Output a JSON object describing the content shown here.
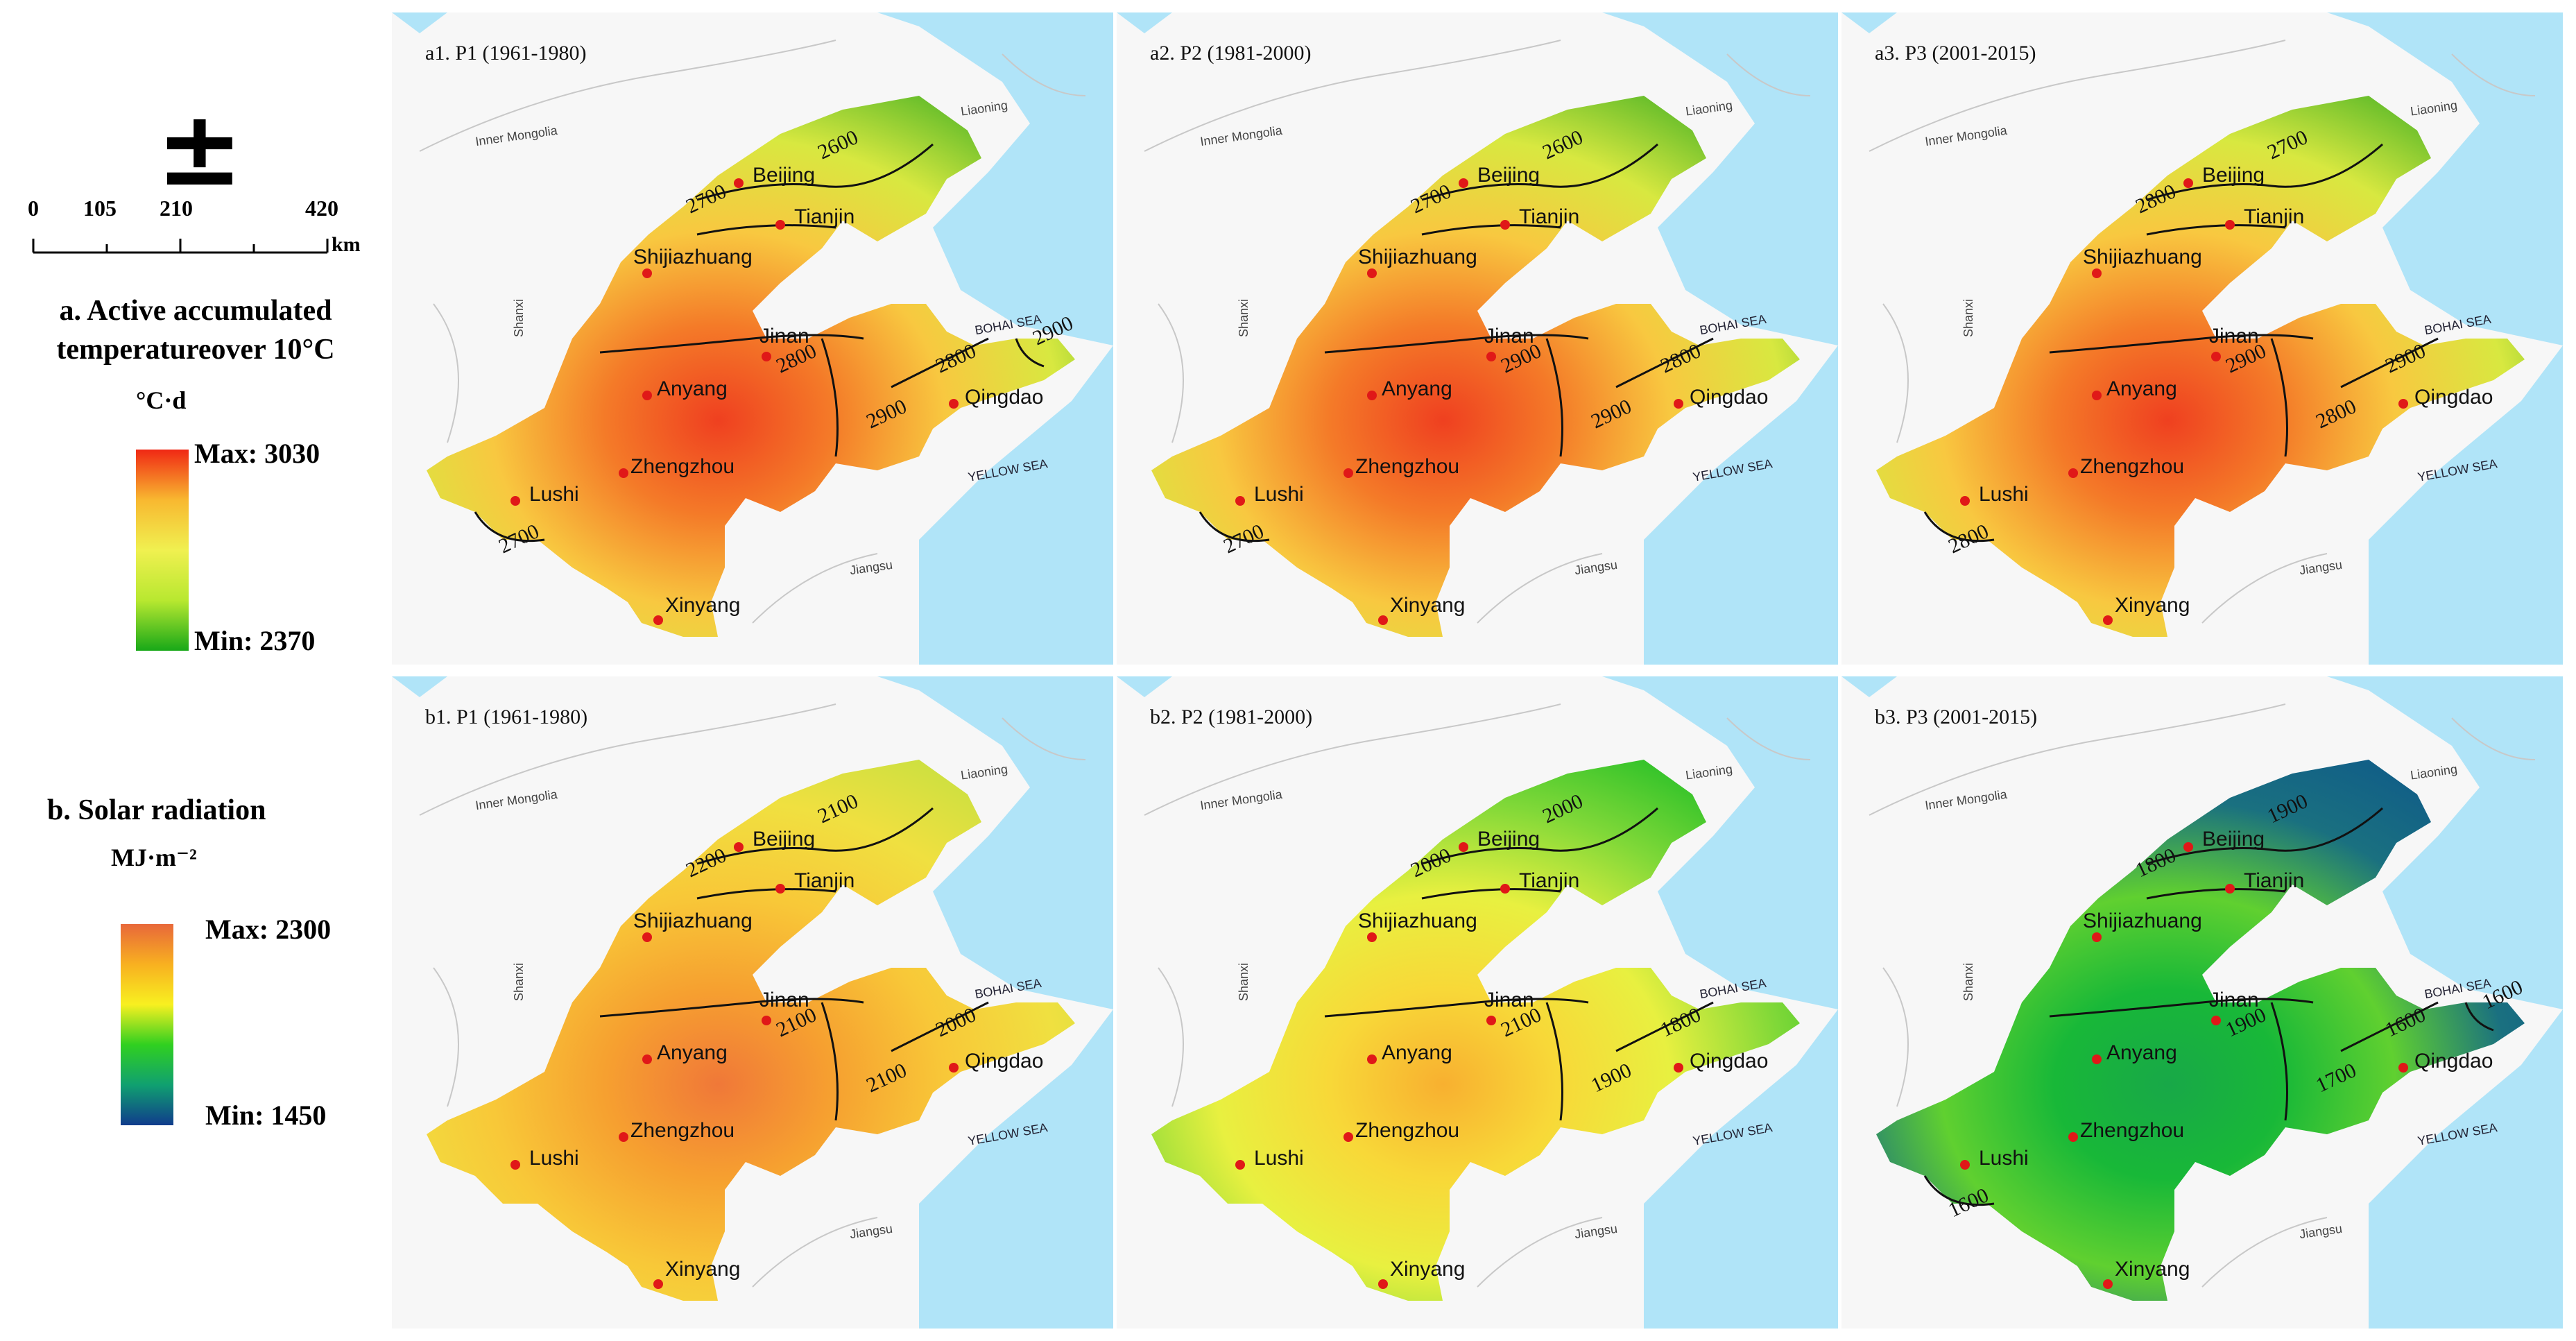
{
  "north_arrow": {
    "symbol": "±"
  },
  "scale_bar": {
    "ticks": [
      "0",
      "105",
      "210",
      "420"
    ],
    "unit": "km"
  },
  "legend_a": {
    "title_line1": "a. Active accumulated",
    "title_line2": "temperatureover 10°C",
    "unit": "°C·d",
    "max_label": "Max: 3030",
    "min_label": "Min: 2370",
    "colors": [
      "#f02814",
      "#f8b830",
      "#f0f050",
      "#b8e830",
      "#18a818"
    ]
  },
  "legend_b": {
    "title": "b. Solar radiation",
    "unit": "MJ·m⁻²",
    "max_label": "Max: 2300",
    "min_label": "Min: 1450",
    "colors": [
      "#e8683a",
      "#f8b020",
      "#f8f020",
      "#30d020",
      "#10a070",
      "#103c8c"
    ]
  },
  "map_labels": {
    "provinces": [
      "Inner Mongolia",
      "Liaoning",
      "Shanxi",
      "Jiangsu"
    ],
    "seas": [
      "BOHAI SEA",
      "YELLOW SEA"
    ],
    "cities": [
      "Beijing",
      "Tianjin",
      "Shijiazhuang",
      "Jinan",
      "Anyang",
      "Qingdao",
      "Zhengzhou",
      "Lushi",
      "Xinyang"
    ]
  },
  "panels": [
    {
      "title": "a1. P1 (1961-1980)",
      "fill": [
        "#ef4020",
        "#f47a28",
        "#f8c840",
        "#d8e840",
        "#58b828"
      ],
      "contours": [
        "2600",
        "2700",
        "2800",
        "2900",
        "2800",
        "2700",
        "2900"
      ]
    },
    {
      "title": "a2. P2 (1981-2000)",
      "fill": [
        "#ef4020",
        "#f47a28",
        "#f8c840",
        "#d8e840",
        "#58b828"
      ],
      "contours": [
        "2600",
        "2700",
        "2900",
        "2900",
        "2800",
        "2700"
      ]
    },
    {
      "title": "a3. P3 (2001-2015)",
      "fill": [
        "#ef4020",
        "#f47a28",
        "#f8c840",
        "#d8e840",
        "#58b828"
      ],
      "contours": [
        "2700",
        "2800",
        "2900",
        "2800",
        "2900",
        "2800"
      ]
    },
    {
      "title": "b1. P1 (1961-1980)",
      "fill": [
        "#f07838",
        "#f6a030",
        "#f8c838",
        "#f0e040",
        "#c8e040"
      ],
      "contours": [
        "2100",
        "2200",
        "2100",
        "2100",
        "2000"
      ]
    },
    {
      "title": "b2. P2 (1981-2000)",
      "fill": [
        "#f8b030",
        "#f8d838",
        "#e8f040",
        "#80d838",
        "#28c028"
      ],
      "contours": [
        "2000",
        "2000",
        "2100",
        "1900",
        "1800"
      ]
    },
    {
      "title": "b3. P3 (2001-2015)",
      "fill": [
        "#18a848",
        "#18b838",
        "#60d030",
        "#1a7080",
        "#105c88"
      ],
      "contours": [
        "1900",
        "1800",
        "1900",
        "1700",
        "1600",
        "1600",
        "1600"
      ]
    }
  ]
}
